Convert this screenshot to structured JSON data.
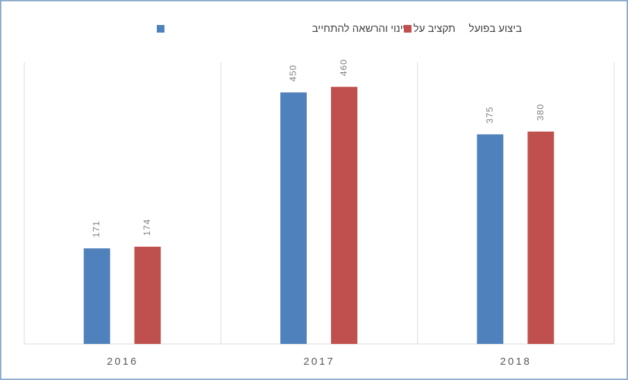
{
  "chart_data": {
    "type": "bar",
    "categories": [
      "2016",
      "2017",
      "2018"
    ],
    "series": [
      {
        "name": "תקציב על שינוי והרשאה להתחייב",
        "color": "#4f81bd",
        "values": [
          171,
          450,
          375
        ]
      },
      {
        "name": "ביצוע בפועל",
        "color": "#c0504d",
        "values": [
          174,
          460,
          380
        ]
      }
    ],
    "ylim": [
      0,
      500
    ]
  }
}
